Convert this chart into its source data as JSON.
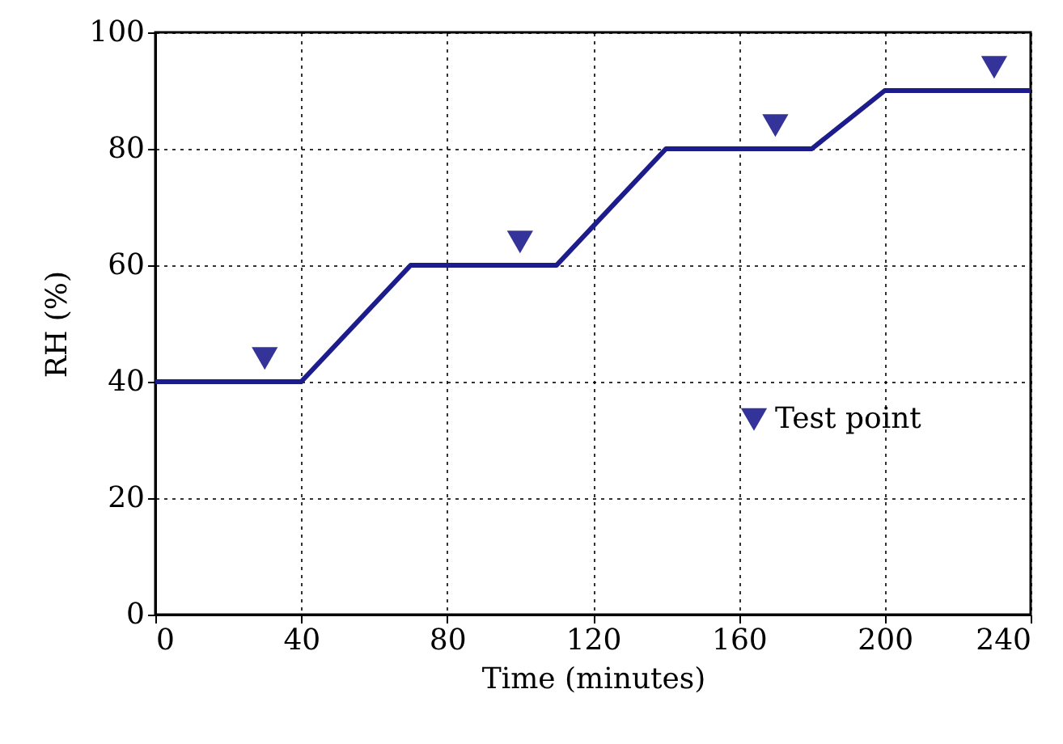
{
  "chart_data": {
    "type": "line",
    "xlabel": "Time (minutes)",
    "ylabel": "RH (%)",
    "xlim": [
      0,
      240
    ],
    "xticks": [
      0,
      40,
      80,
      120,
      160,
      200,
      240
    ],
    "ylim": [
      0,
      100
    ],
    "yticks": [
      0,
      20,
      40,
      60,
      80,
      100
    ],
    "grid": true,
    "legend": "right",
    "line_style": "solid",
    "series": [
      {
        "color": "#1c1c8c",
        "x": [
          0,
          40,
          70,
          110,
          140,
          180,
          200,
          240
        ],
        "values": [
          40,
          40,
          60,
          60,
          80,
          80,
          90,
          90
        ]
      },
      {
        "name": "Test point",
        "type": "scatter",
        "marker": "triangle",
        "color": "#333399",
        "x": [
          30,
          100,
          170,
          230
        ],
        "values": [
          44,
          64,
          84,
          94
        ]
      }
    ]
  }
}
